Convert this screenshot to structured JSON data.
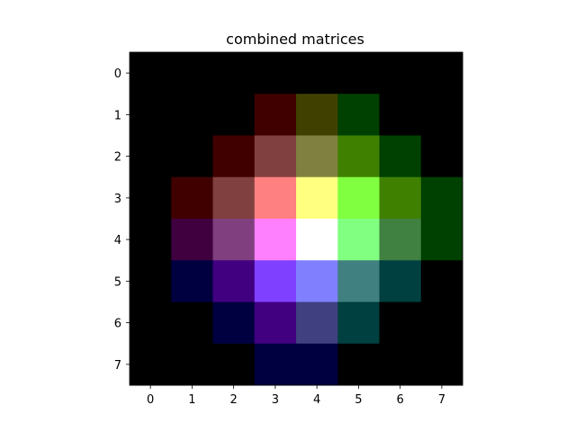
{
  "chart_data": {
    "type": "heatmap",
    "title": "combined matrices",
    "xlabel": "",
    "ylabel": "",
    "x_ticks": [
      "0",
      "1",
      "2",
      "3",
      "4",
      "5",
      "6",
      "7"
    ],
    "y_ticks": [
      "0",
      "1",
      "2",
      "3",
      "4",
      "5",
      "6",
      "7"
    ],
    "xlim": [
      -0.5,
      7.5
    ],
    "ylim": [
      7.5,
      -0.5
    ],
    "grid": false,
    "cells": [
      [
        "#000000",
        "#000000",
        "#000000",
        "#000000",
        "#000000",
        "#000000",
        "#000000",
        "#000000"
      ],
      [
        "#000000",
        "#000000",
        "#000000",
        "#400000",
        "#404000",
        "#004000",
        "#000000",
        "#000000"
      ],
      [
        "#000000",
        "#000000",
        "#400000",
        "#804040",
        "#808040",
        "#408000",
        "#004000",
        "#000000"
      ],
      [
        "#000000",
        "#400000",
        "#804040",
        "#ff8080",
        "#ffff80",
        "#80ff40",
        "#408000",
        "#004000"
      ],
      [
        "#000000",
        "#400040",
        "#804080",
        "#ff80ff",
        "#ffffff",
        "#80ff80",
        "#408040",
        "#004000"
      ],
      [
        "#000000",
        "#000040",
        "#400080",
        "#8040ff",
        "#8080ff",
        "#408080",
        "#004040",
        "#000000"
      ],
      [
        "#000000",
        "#000000",
        "#000040",
        "#400080",
        "#404080",
        "#004040",
        "#000000",
        "#000000"
      ],
      [
        "#000000",
        "#000000",
        "#000000",
        "#000040",
        "#000040",
        "#000000",
        "#000000",
        "#000000"
      ]
    ]
  }
}
